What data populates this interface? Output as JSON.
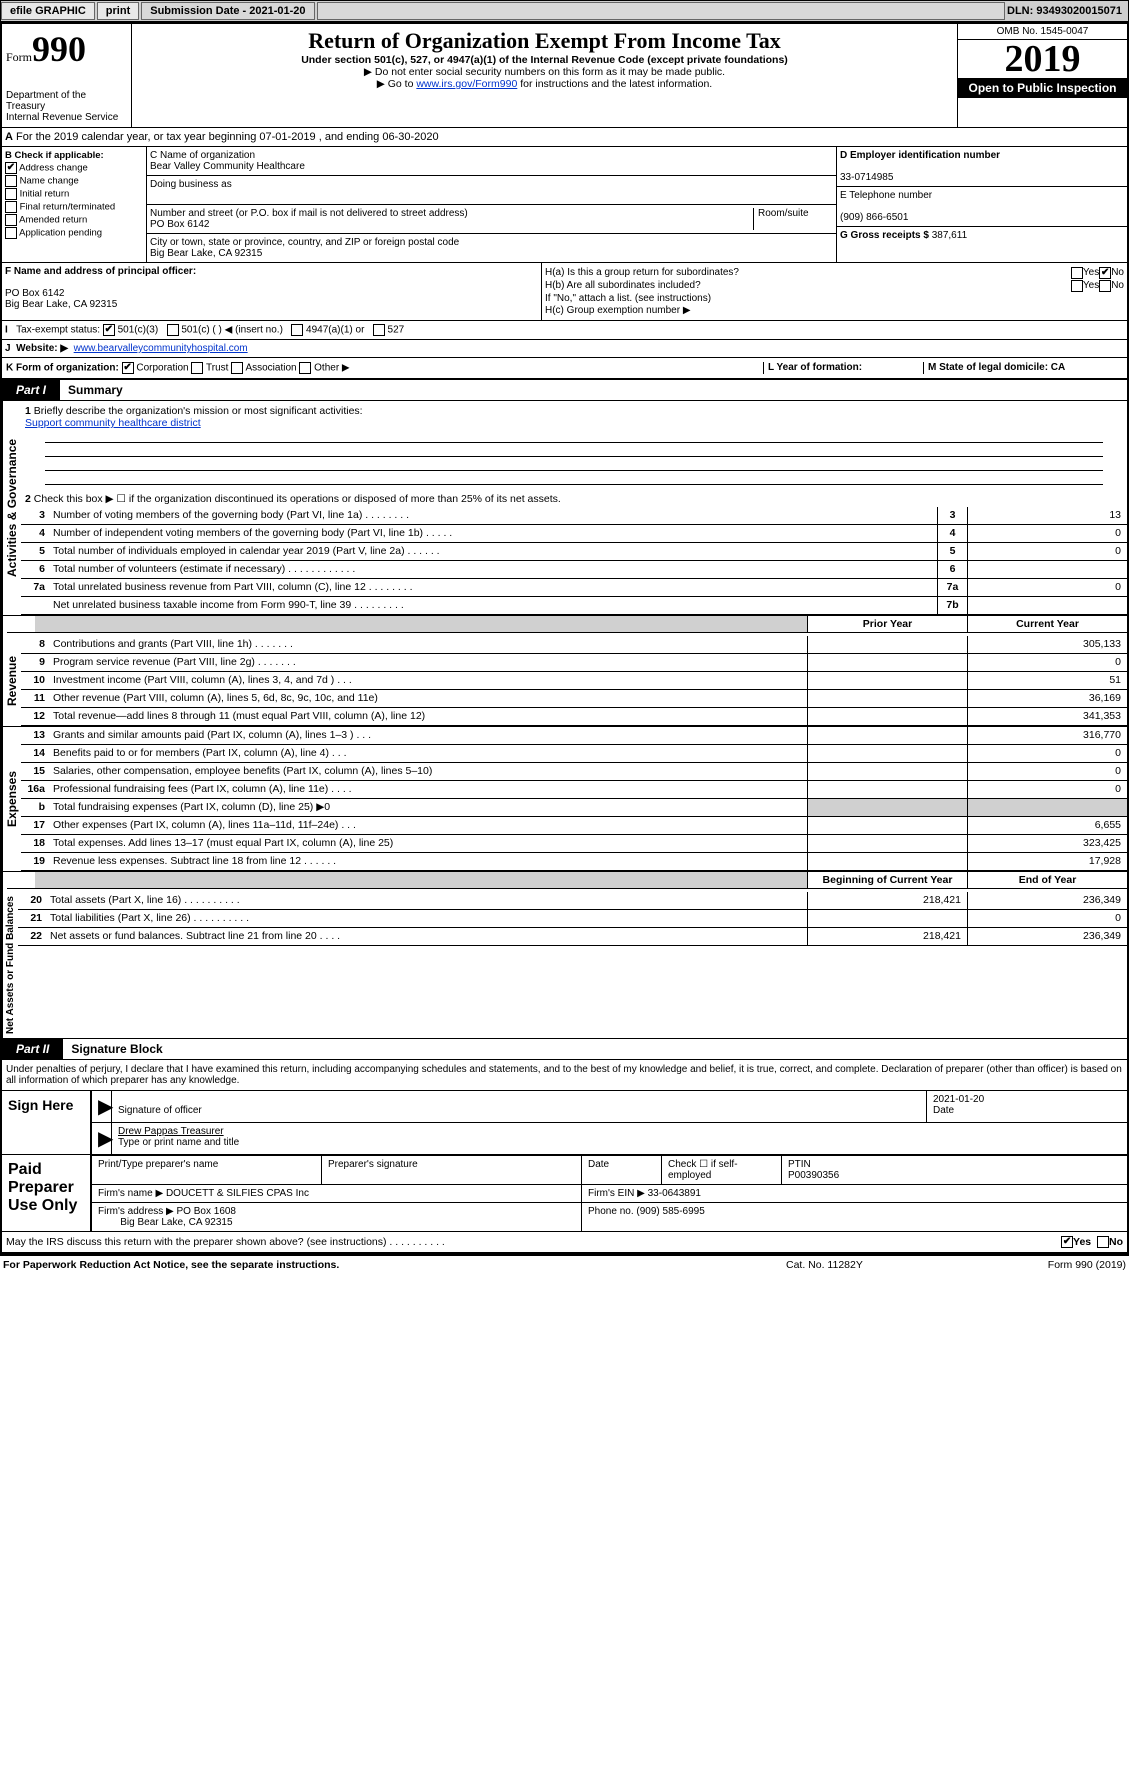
{
  "topbar": {
    "efile": "efile GRAPHIC",
    "print": "print",
    "sub_label": "Submission Date - 2021-01-20",
    "dln": "DLN: 93493020015071"
  },
  "header": {
    "form_word": "Form",
    "form_num": "990",
    "dept": "Department of the Treasury",
    "irs": "Internal Revenue Service",
    "title": "Return of Organization Exempt From Income Tax",
    "subtitle": "Under section 501(c), 527, or 4947(a)(1) of the Internal Revenue Code (except private foundations)",
    "note1": "▶ Do not enter social security numbers on this form as it may be made public.",
    "note2_pre": "▶ Go to ",
    "note2_link": "www.irs.gov/Form990",
    "note2_post": " for instructions and the latest information.",
    "omb": "OMB No. 1545-0047",
    "year": "2019",
    "open": "Open to Public Inspection"
  },
  "line_a": "For the 2019 calendar year, or tax year beginning 07-01-2019    , and ending 06-30-2020",
  "box_b": {
    "label": "B Check if applicable:",
    "o1": "Address change",
    "o2": "Name change",
    "o3": "Initial return",
    "o4": "Final return/terminated",
    "o5": "Amended return",
    "o6": "Application pending"
  },
  "box_c": {
    "name_label": "C Name of organization",
    "name": "Bear Valley Community Healthcare",
    "dba_label": "Doing business as",
    "addr_label": "Number and street (or P.O. box if mail is not delivered to street address)",
    "room_label": "Room/suite",
    "addr": "PO Box 6142",
    "city_label": "City or town, state or province, country, and ZIP or foreign postal code",
    "city": "Big Bear Lake, CA  92315"
  },
  "box_d": {
    "label": "D Employer identification number",
    "val": "33-0714985"
  },
  "box_e": {
    "label": "E Telephone number",
    "val": "(909) 866-6501"
  },
  "box_g": {
    "label": "G Gross receipts $",
    "val": "387,611"
  },
  "box_f": {
    "label": "F  Name and address of principal officer:",
    "addr1": "PO Box 6142",
    "addr2": "Big Bear Lake, CA  92315"
  },
  "box_h": {
    "ha": "H(a)  Is this a group return for subordinates?",
    "hb": "H(b)  Are all subordinates included?",
    "hb_note": "If \"No,\" attach a list. (see instructions)",
    "hc": "H(c)  Group exemption number ▶",
    "yes": "Yes",
    "no": "No"
  },
  "box_i": {
    "label": "Tax-exempt status:",
    "o1": "501(c)(3)",
    "o2": "501(c) (   ) ◀ (insert no.)",
    "o3": "4947(a)(1) or",
    "o4": "527"
  },
  "box_j": {
    "label": "Website: ▶",
    "url": "www.bearvalleycommunityhospital.com"
  },
  "box_k": {
    "label": "K Form of organization:",
    "o1": "Corporation",
    "o2": "Trust",
    "o3": "Association",
    "o4": "Other ▶"
  },
  "box_l": {
    "label": "L Year of formation:"
  },
  "box_m": {
    "label": "M State of legal domicile: CA"
  },
  "part1": {
    "tag": "Part I",
    "title": "Summary"
  },
  "summary": {
    "q1": "Briefly describe the organization's mission or most significant activities:",
    "mission": "Support community healthcare district",
    "q2": "Check this box ▶ ☐  if the organization discontinued its operations or disposed of more than 25% of its net assets.",
    "rows": [
      {
        "n": "3",
        "d": "Number of voting members of the governing body (Part VI, line 1a)   .    .    .    .    .    .    .    .",
        "box": "3",
        "v": "13"
      },
      {
        "n": "4",
        "d": "Number of independent voting members of the governing body (Part VI, line 1b)   .    .    .    .    .",
        "box": "4",
        "v": "0"
      },
      {
        "n": "5",
        "d": "Total number of individuals employed in calendar year 2019 (Part V, line 2a)   .    .    .    .    .    .",
        "box": "5",
        "v": "0"
      },
      {
        "n": "6",
        "d": "Total number of volunteers (estimate if necessary)   .    .    .    .    .    .    .    .    .    .    .    .",
        "box": "6",
        "v": ""
      },
      {
        "n": "7a",
        "d": "Total unrelated business revenue from Part VIII, column (C), line 12   .    .    .    .    .    .    .    .",
        "box": "7a",
        "v": "0"
      },
      {
        "n": " ",
        "d": "Net unrelated business taxable income from Form 990-T, line 39   .    .    .    .    .    .    .    .    .",
        "box": "7b",
        "v": ""
      }
    ],
    "hdr_prior": "Prior Year",
    "hdr_curr": "Current Year",
    "rev_rows": [
      {
        "n": "8",
        "d": "Contributions and grants (Part VIII, line 1h)   .    .    .    .    .    .    .",
        "p": "",
        "c": "305,133"
      },
      {
        "n": "9",
        "d": "Program service revenue (Part VIII, line 2g)   .    .    .    .    .    .    .",
        "p": "",
        "c": "0"
      },
      {
        "n": "10",
        "d": "Investment income (Part VIII, column (A), lines 3, 4, and 7d )   .    .    .",
        "p": "",
        "c": "51"
      },
      {
        "n": "11",
        "d": "Other revenue (Part VIII, column (A), lines 5, 6d, 8c, 9c, 10c, and 11e)",
        "p": "",
        "c": "36,169"
      },
      {
        "n": "12",
        "d": "Total revenue—add lines 8 through 11 (must equal Part VIII, column (A), line 12)",
        "p": "",
        "c": "341,353"
      }
    ],
    "exp_rows": [
      {
        "n": "13",
        "d": "Grants and similar amounts paid (Part IX, column (A), lines 1–3 )   .    .    .",
        "p": "",
        "c": "316,770"
      },
      {
        "n": "14",
        "d": "Benefits paid to or for members (Part IX, column (A), line 4)   .    .    .",
        "p": "",
        "c": "0"
      },
      {
        "n": "15",
        "d": "Salaries, other compensation, employee benefits (Part IX, column (A), lines 5–10)",
        "p": "",
        "c": "0"
      },
      {
        "n": "16a",
        "d": "Professional fundraising fees (Part IX, column (A), line 11e)   .    .    .    .",
        "p": "",
        "c": "0"
      },
      {
        "n": "b",
        "d": "Total fundraising expenses (Part IX, column (D), line 25) ▶0",
        "p": "grey",
        "c": "grey"
      },
      {
        "n": "17",
        "d": "Other expenses (Part IX, column (A), lines 11a–11d, 11f–24e)   .    .    .",
        "p": "",
        "c": "6,655"
      },
      {
        "n": "18",
        "d": "Total expenses. Add lines 13–17 (must equal Part IX, column (A), line 25)",
        "p": "",
        "c": "323,425"
      },
      {
        "n": "19",
        "d": "Revenue less expenses. Subtract line 18 from line 12   .    .    .    .    .    .",
        "p": "",
        "c": "17,928"
      }
    ],
    "hdr_begin": "Beginning of Current Year",
    "hdr_end": "End of Year",
    "na_rows": [
      {
        "n": "20",
        "d": "Total assets (Part X, line 16)   .    .    .    .    .    .    .    .    .    .",
        "p": "218,421",
        "c": "236,349"
      },
      {
        "n": "21",
        "d": "Total liabilities (Part X, line 26)   .    .    .    .    .    .    .    .    .    .",
        "p": "",
        "c": "0"
      },
      {
        "n": "22",
        "d": "Net assets or fund balances. Subtract line 21 from line 20   .    .    .    .",
        "p": "218,421",
        "c": "236,349"
      }
    ],
    "vert_ag": "Activities & Governance",
    "vert_rev": "Revenue",
    "vert_exp": "Expenses",
    "vert_na": "Net Assets or Fund Balances"
  },
  "part2": {
    "tag": "Part II",
    "title": "Signature Block"
  },
  "sig": {
    "decl": "Under penalties of perjury, I declare that I have examined this return, including accompanying schedules and statements, and to the best of my knowledge and belief, it is true, correct, and complete. Declaration of preparer (other than officer) is based on all information of which preparer has any knowledge.",
    "sign_here": "Sign Here",
    "sig_officer": "Signature of officer",
    "date_val": "2021-01-20",
    "date_lbl": "Date",
    "name": "Drew Pappas  Treasurer",
    "name_lbl": "Type or print name and title",
    "paid": "Paid Preparer Use Only",
    "prep_name_lbl": "Print/Type preparer's name",
    "prep_sig_lbl": "Preparer's signature",
    "check_lbl": "Check ☐ if self-employed",
    "ptin_lbl": "PTIN",
    "ptin": "P00390356",
    "firm_name_lbl": "Firm's name    ▶",
    "firm_name": "DOUCETT & SILFIES CPAS Inc",
    "firm_ein_lbl": "Firm's EIN ▶",
    "firm_ein": "33-0643891",
    "firm_addr_lbl": "Firm's address ▶",
    "firm_addr": "PO Box 1608",
    "firm_city": "Big Bear Lake, CA  92315",
    "phone_lbl": "Phone no.",
    "phone": "(909) 585-6995",
    "discuss": "May the IRS discuss this return with the preparer shown above? (see instructions)   .    .    .    .    .    .    .    .    .    .",
    "yes": "Yes",
    "no": "No"
  },
  "footer": {
    "left": "For Paperwork Reduction Act Notice, see the separate instructions.",
    "cat": "Cat. No. 11282Y",
    "right": "Form 990 (2019)"
  }
}
